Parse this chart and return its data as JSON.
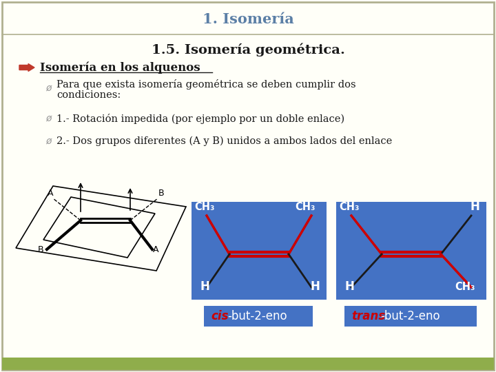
{
  "title": "1. Isomería",
  "subtitle": "1.5. Isomería geométrica.",
  "arrow_text": "Isomería en los alquenos",
  "bullet1_line1": "Para que exista isomería geométrica se deben cumplir dos",
  "bullet1_line2": "condiciones:",
  "bullet2": "1.- Rotación impedida (por ejemplo por un doble enlace)",
  "bullet3": "2.- Dos grupos diferentes (A y B) unidos a ambos lados del enlace",
  "cis_label_italic": "cis",
  "cis_label_rest": "-but-2-eno",
  "trans_label_italic": "trans",
  "trans_label_rest": "-but-2-eno",
  "title_color": "#5b7fa6",
  "subtitle_color": "#1a1a1a",
  "arrow_color": "#c0392b",
  "text_color": "#1a1a1a",
  "bg_color": "#fffff8",
  "border_color": "#b0b090",
  "blue_box_color": "#4472c4",
  "label_italic_color": "#cc0000",
  "bottom_bar_color": "#8fad4b",
  "red_bond_color": "#cc0000",
  "black_bond_color": "#1a1a1a",
  "bullet_marker_color": "#999999"
}
